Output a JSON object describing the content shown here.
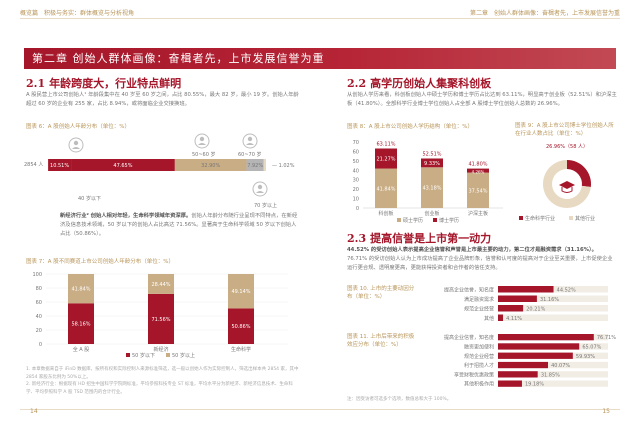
{
  "header": {
    "left": "概览篇　积极与务实：群体概览与分析视角",
    "right": "第二章　创始人群体画像：奋楫者先，上市发展信誉为重"
  },
  "chapter_title": "第二章  创始人群体画像：奋楫者先，上市发展信誉为重",
  "sec1": {
    "num": "2.1",
    "title": "年龄跨度大，行业特点鲜明",
    "para": "A 股民营上市公司创始人¹ 年龄段集中在 40 岁至 60 岁之间，占比 80.55%，最大 82 岁，最小 19 岁。创始人年龄超过 60 岁的企业有 255 家，占比 8.94%，或将面临企业交接换班。",
    "fig6_caption": "图表 6：A 股创始人年龄分布（单位：%）",
    "para2_bold": "新经济行业² 创始人相对年轻，生命科学领域年资深厚。",
    "para2": "创始人年龄分布随行业呈现不同特点，在新经济及信息技术领域，50 岁以下的创始人占比高达 71.56%。显著高于生命科学领域 50 岁以下创始人占比（50.86%）。",
    "fig7_caption": "图表 7：A 股不同赛道上市公司创始人年龄分布（单位：%）",
    "footnote1": "1. 本章数据来自于 iFinD 数据库，按所有权和实际控制人来源标准筛选，选一般以创始人作为实际控制人，筛选出样本共 2854 家，其中 2854 家股东比例为 50%以上。",
    "footnote2": "2. 新经济行业：根据现有 HD 招生中国科学学院网标准，平均参照科技专业 ST 标准，平均水平分为新经济、新经济信息技术、生命科学、平均参照科学 A 股 TSD 范围内的合计行业。",
    "page": "14"
  },
  "sec2": {
    "num": "2.2",
    "title": "高学历创始人集聚科创板",
    "para": "从创始人学历来看，科创板创始人中硕士学历和博士学历占比达到 63.11%，明显高于创业板（52.51%）和沪深主板（41.80%）。全部科学行业博士学位创始人占全部 A 股博士学位创始人总数的 26.96%。",
    "fig8_caption": "图表 8：A 股上市公司创始人学历结构（单位：%）",
    "fig9_caption": "图表 9：A 股上市公司博士学位创始人所在行业人数占比（单位：%）",
    "donut_label": "26.96%（58 人）"
  },
  "sec3": {
    "num": "2.3",
    "title": "提高信誉是上市第一动力",
    "para_bold": "44.52% 的受访创始人表示提高企业信誉和声誉是上市最主要的动力，第二位才是融资需求（31.16%）。",
    "para": "76.71% 的受访创始人认为上市成功提高了企业品牌形象，信誉和认可度的提高对于企业至关重要，上市促使企业运行更合规、透明度更高，更能获得投资者和合作者的信任支持。",
    "fig10_caption": "图表 10. 上市的主要动因分布（单位：%）",
    "fig11_caption": "图表 11. 上市后带来的积极效应分布（单位：%）",
    "note": "注：因受访者可选多个选项，数值总和大于 100%。",
    "page": "15"
  },
  "chart_data": [
    {
      "type": "bar",
      "title": "A 股创始人年龄分布",
      "categories": [
        "2854 人"
      ],
      "series": [
        {
          "name": "≤30 岁",
          "values": [
            0.07
          ]
        },
        {
          "name": "30~40 岁",
          "values": [
            10.51
          ]
        },
        {
          "name": "40~50 岁",
          "values": [
            47.65
          ]
        },
        {
          "name": "50~60 岁",
          "values": [
            32.9
          ]
        },
        {
          "name": "60~70 岁",
          "values": [
            7.92
          ]
        },
        {
          "name": "≥70 岁",
          "values": [
            1.02
          ]
        }
      ],
      "labels": [
        "40 岁以下",
        "50~60 岁",
        "60~70 岁",
        "70 岁以上"
      ],
      "value_labels": [
        "10.51%",
        "47.65%",
        "32.90%",
        "7.92%",
        "1.02%"
      ]
    },
    {
      "type": "bar",
      "title": "A 股不同赛道上市公司创始人年龄分布",
      "categories": [
        "全 A 股",
        "新经济",
        "生命科学"
      ],
      "series": [
        {
          "name": "50 岁以下",
          "values": [
            58.16,
            71.56,
            50.86
          ]
        },
        {
          "name": "50 岁以上",
          "values": [
            41.84,
            28.44,
            49.14
          ]
        }
      ],
      "yticks": [
        "100",
        "80",
        "60",
        "40",
        "20",
        "0"
      ],
      "ylim": [
        0,
        100
      ]
    },
    {
      "type": "bar",
      "title": "A 股上市公司创始人学历结构",
      "categories": [
        "科创板",
        "创业板",
        "沪深主板"
      ],
      "series": [
        {
          "name": "硕士学历",
          "values": [
            41.84,
            43.18,
            37.54
          ]
        },
        {
          "name": "博士学历",
          "values": [
            21.27,
            9.33,
            4.26
          ]
        }
      ],
      "totals": [
        "63.11%",
        "52.51%",
        "41.80%"
      ],
      "yticks": [
        "70",
        "60",
        "50",
        "40",
        "30",
        "20",
        "10",
        "0"
      ],
      "ylim": [
        0,
        70
      ]
    },
    {
      "type": "pie",
      "title": "A 股上市公司博士学位创始人所在行业人数占比",
      "series": [
        {
          "name": "生命科学行业",
          "values": [
            26.96
          ]
        },
        {
          "name": "其他行业",
          "values": [
            73.04
          ]
        }
      ]
    },
    {
      "type": "bar",
      "title": "上市的主要动因分布",
      "categories": [
        "提高企业信誉，知名度",
        "满足融资需求",
        "规范企业经营",
        "其他"
      ],
      "values": [
        44.52,
        31.16,
        20.21,
        4.11
      ],
      "value_labels": [
        "44.52%",
        "31.16%",
        "20.21%",
        "4.11%"
      ],
      "xlim": [
        0,
        80
      ]
    },
    {
      "type": "bar",
      "title": "上市后带来的积极效应分布",
      "categories": [
        "提高企业信誉，知名度",
        "融资更加便利",
        "规范企业经营",
        "利于招揽人才",
        "享受财税优惠政策",
        "其他积极作用"
      ],
      "values": [
        76.71,
        65.07,
        59.93,
        40.07,
        31.85,
        19.18
      ],
      "value_labels": [
        "76.71%",
        "65.07%",
        "59.93%",
        "40.07%",
        "31.85%",
        "19.18%"
      ],
      "xlim": [
        0,
        80
      ]
    }
  ],
  "legends": {
    "fig7": [
      "50 岁以下",
      "50 岁以上"
    ],
    "fig8": [
      "硕士学历",
      "博士学历"
    ],
    "fig9": [
      "生命科学行业",
      "其他行业"
    ]
  },
  "colors": {
    "primary": "#a5162a",
    "secondary": "#c9ad85",
    "light": "#e8d9c2",
    "gray": "#b5b5b5",
    "muted": "#d7c8b5"
  },
  "icons": {
    "age_icons": [
      "person-icon",
      "person-icon",
      "person-icon",
      "person-icon"
    ]
  }
}
